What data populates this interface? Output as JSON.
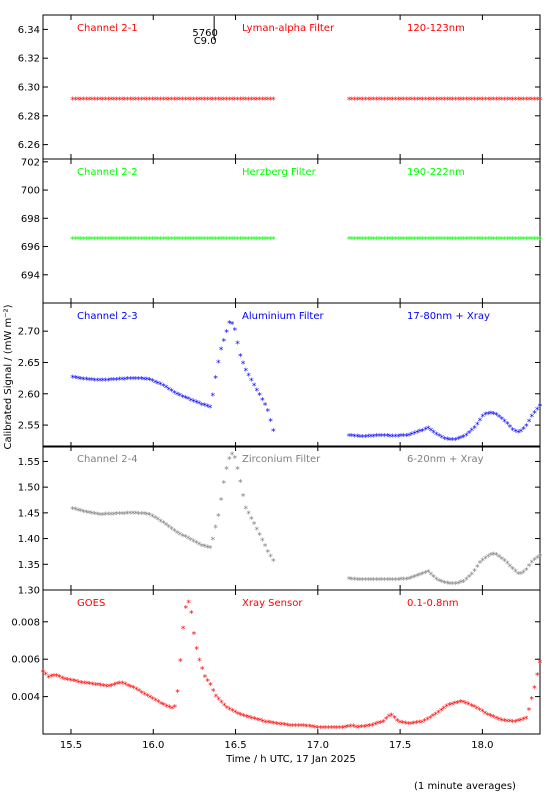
{
  "figure": {
    "xlabel": "Time / h UTC, 17 Jan 2025",
    "ylabel": "Calibrated Signal / (mW m⁻²)",
    "footer": "(1 minute averages)",
    "event_marker": {
      "time": 16.37,
      "labels": [
        "5760",
        "C9.0"
      ]
    }
  },
  "chart_data": [
    {
      "type": "scatter",
      "channel": "Channel 2-1",
      "filter": "Lyman-alpha Filter",
      "band": "120-123nm",
      "color": "#ff0000",
      "ylim": [
        6.25,
        6.35
      ],
      "yticks": [
        6.26,
        6.28,
        6.3,
        6.32,
        6.34
      ],
      "yfmt": 2,
      "xlim": [
        15.33,
        18.35
      ],
      "xticks": [
        15.5,
        16.0,
        16.5,
        17.0,
        17.5,
        18.0
      ],
      "segments": [
        {
          "x": [
            15.51,
            16.73
          ],
          "y": [
            [
              0,
              6.291
            ],
            [
              1,
              6.291
            ]
          ]
        },
        {
          "x": [
            17.19,
            18.35
          ],
          "y": [
            [
              0,
              6.291
            ],
            [
              1,
              6.291
            ]
          ]
        }
      ]
    },
    {
      "type": "scatter",
      "channel": "Channel 2-2",
      "filter": "Herzberg Filter",
      "band": "190-222nm",
      "color": "#00ff00",
      "ylim": [
        692.0,
        702.2
      ],
      "yticks": [
        694,
        696,
        698,
        700,
        702
      ],
      "yfmt": 0,
      "xlim": [
        15.33,
        18.35
      ],
      "xticks": [
        15.5,
        16.0,
        16.5,
        17.0,
        17.5,
        18.0
      ],
      "segments": [
        {
          "x": [
            15.51,
            16.73
          ],
          "y": [
            [
              0,
              696.5
            ],
            [
              1,
              696.5
            ]
          ]
        },
        {
          "x": [
            17.19,
            18.35
          ],
          "y": [
            [
              0,
              696.5
            ],
            [
              1,
              696.5
            ]
          ]
        }
      ]
    },
    {
      "type": "scatter",
      "channel": "Channel 2-3",
      "filter": "Aluminium Filter",
      "band": "17-80nm + Xray",
      "color": "#0000ff",
      "ylim": [
        2.515,
        2.745
      ],
      "yticks": [
        2.55,
        2.6,
        2.65,
        2.7
      ],
      "yfmt": 2,
      "xlim": [
        15.33,
        18.35
      ],
      "xticks": [
        15.5,
        16.0,
        16.5,
        17.0,
        17.5,
        18.0
      ],
      "segments": [
        {
          "x": [
            15.51,
            16.73
          ],
          "y": [
            [
              0,
              2.625
            ],
            [
              0.06,
              2.622
            ],
            [
              0.14,
              2.62
            ],
            [
              0.2,
              2.621
            ],
            [
              0.3,
              2.623
            ],
            [
              0.38,
              2.622
            ],
            [
              0.45,
              2.612
            ],
            [
              0.52,
              2.598
            ],
            [
              0.58,
              2.59
            ],
            [
              0.64,
              2.582
            ],
            [
              0.68,
              2.578
            ],
            [
              0.69,
              2.577
            ],
            [
              0.7,
              2.6
            ],
            [
              0.72,
              2.64
            ],
            [
              0.74,
              2.67
            ],
            [
              0.76,
              2.69
            ],
            [
              0.78,
              2.712
            ],
            [
              0.79,
              2.714
            ],
            [
              0.81,
              2.7
            ],
            [
              0.83,
              2.665
            ],
            [
              0.86,
              2.638
            ],
            [
              0.9,
              2.615
            ],
            [
              0.94,
              2.592
            ],
            [
              0.97,
              2.575
            ],
            [
              1.0,
              2.54
            ]
          ]
        },
        {
          "x": [
            17.19,
            18.35
          ],
          "y": [
            [
              0,
              2.532
            ],
            [
              0.1,
              2.53
            ],
            [
              0.2,
              2.532
            ],
            [
              0.3,
              2.531
            ],
            [
              0.4,
              2.532
            ],
            [
              0.5,
              2.54
            ],
            [
              0.54,
              2.544
            ],
            [
              0.6,
              2.533
            ],
            [
              0.66,
              2.526
            ],
            [
              0.72,
              2.525
            ],
            [
              0.76,
              2.528
            ],
            [
              0.8,
              2.533
            ],
            [
              0.86,
              2.546
            ],
            [
              0.92,
              2.566
            ],
            [
              0.97,
              2.568
            ],
            [
              1.0,
              2.566
            ],
            [
              1.06,
              2.555
            ],
            [
              1.12,
              2.54
            ],
            [
              1.16,
              2.537
            ],
            [
              1.2,
              2.545
            ],
            [
              1.25,
              2.565
            ],
            [
              1.3,
              2.58
            ]
          ]
        }
      ]
    },
    {
      "type": "scatter",
      "channel": "Channel 2-4",
      "filter": "Zirconium Filter",
      "band": "6-20nm + Xray",
      "color": "#808080",
      "ylim": [
        1.3,
        1.58
      ],
      "yticks": [
        1.3,
        1.35,
        1.4,
        1.45,
        1.5,
        1.55
      ],
      "yfmt": 2,
      "xlim": [
        15.33,
        18.35
      ],
      "xticks": [
        15.5,
        16.0,
        16.5,
        17.0,
        17.5,
        18.0
      ],
      "segments": [
        {
          "x": [
            15.51,
            16.73
          ],
          "y": [
            [
              0,
              1.457
            ],
            [
              0.06,
              1.45
            ],
            [
              0.14,
              1.445
            ],
            [
              0.2,
              1.446
            ],
            [
              0.3,
              1.448
            ],
            [
              0.38,
              1.446
            ],
            [
              0.45,
              1.43
            ],
            [
              0.52,
              1.41
            ],
            [
              0.58,
              1.398
            ],
            [
              0.64,
              1.385
            ],
            [
              0.69,
              1.38
            ],
            [
              0.7,
              1.4
            ],
            [
              0.73,
              1.45
            ],
            [
              0.75,
              1.5
            ],
            [
              0.77,
              1.54
            ],
            [
              0.79,
              1.565
            ],
            [
              0.81,
              1.555
            ],
            [
              0.83,
              1.52
            ],
            [
              0.86,
              1.46
            ],
            [
              0.9,
              1.43
            ],
            [
              0.94,
              1.4
            ],
            [
              0.97,
              1.375
            ],
            [
              1.0,
              1.355
            ]
          ]
        },
        {
          "x": [
            17.19,
            18.35
          ],
          "y": [
            [
              0,
              1.32
            ],
            [
              0.1,
              1.318
            ],
            [
              0.2,
              1.319
            ],
            [
              0.3,
              1.318
            ],
            [
              0.4,
              1.32
            ],
            [
              0.5,
              1.33
            ],
            [
              0.54,
              1.334
            ],
            [
              0.6,
              1.318
            ],
            [
              0.66,
              1.312
            ],
            [
              0.72,
              1.31
            ],
            [
              0.78,
              1.315
            ],
            [
              0.84,
              1.33
            ],
            [
              0.9,
              1.355
            ],
            [
              0.97,
              1.368
            ],
            [
              1.0,
              1.368
            ],
            [
              1.06,
              1.355
            ],
            [
              1.12,
              1.338
            ],
            [
              1.16,
              1.328
            ],
            [
              1.2,
              1.335
            ],
            [
              1.25,
              1.355
            ],
            [
              1.3,
              1.365
            ]
          ]
        }
      ]
    },
    {
      "type": "scatter",
      "channel": "GOES",
      "filter": "Xray Sensor",
      "band": "0.1-0.8nm",
      "color": "#ff0000",
      "ylim": [
        0.002,
        0.0097
      ],
      "yticks": [
        0.004,
        0.006,
        0.008
      ],
      "yfmt": 3,
      "xlim": [
        15.33,
        18.35
      ],
      "xticks": [
        15.5,
        16.0,
        16.5,
        17.0,
        17.5,
        18.0
      ],
      "segments": [
        {
          "x": [
            15.33,
            18.35
          ],
          "y": [
            [
              0,
              0.0053
            ],
            [
              0.02,
              0.005
            ],
            [
              0.05,
              0.0051
            ],
            [
              0.08,
              0.0049
            ],
            [
              0.15,
              0.0047
            ],
            [
              0.2,
              0.0046
            ],
            [
              0.25,
              0.0045
            ],
            [
              0.3,
              0.0047
            ],
            [
              0.35,
              0.0044
            ],
            [
              0.4,
              0.004
            ],
            [
              0.45,
              0.0036
            ],
            [
              0.48,
              0.0034
            ],
            [
              0.5,
              0.0033
            ],
            [
              0.51,
              0.0036
            ],
            [
              0.52,
              0.005
            ],
            [
              0.53,
              0.0068
            ],
            [
              0.54,
              0.0083
            ],
            [
              0.55,
              0.009
            ],
            [
              0.56,
              0.009
            ],
            [
              0.57,
              0.0082
            ],
            [
              0.58,
              0.007
            ],
            [
              0.6,
              0.0058
            ],
            [
              0.62,
              0.005
            ],
            [
              0.64,
              0.0046
            ],
            [
              0.66,
              0.004
            ],
            [
              0.7,
              0.0034
            ],
            [
              0.75,
              0.003
            ],
            [
              0.8,
              0.0028
            ],
            [
              0.85,
              0.0026
            ],
            [
              0.9,
              0.0025
            ],
            [
              0.95,
              0.0024
            ],
            [
              1.0,
              0.0024
            ],
            [
              1.05,
              0.0023
            ],
            [
              1.1,
              0.0023
            ],
            [
              1.15,
              0.0023
            ],
            [
              1.18,
              0.0024
            ],
            [
              1.2,
              0.0023
            ],
            [
              1.25,
              0.0024
            ],
            [
              1.3,
              0.0026
            ],
            [
              1.33,
              0.003
            ],
            [
              1.36,
              0.0026
            ],
            [
              1.4,
              0.0025
            ],
            [
              1.45,
              0.0026
            ],
            [
              1.5,
              0.003
            ],
            [
              1.55,
              0.0035
            ],
            [
              1.6,
              0.0037
            ],
            [
              1.65,
              0.0034
            ],
            [
              1.7,
              0.003
            ],
            [
              1.75,
              0.0027
            ],
            [
              1.8,
              0.0026
            ],
            [
              1.85,
              0.0028
            ],
            [
              1.88,
              0.0045
            ],
            [
              1.9,
              0.0058
            ]
          ]
        }
      ]
    }
  ]
}
